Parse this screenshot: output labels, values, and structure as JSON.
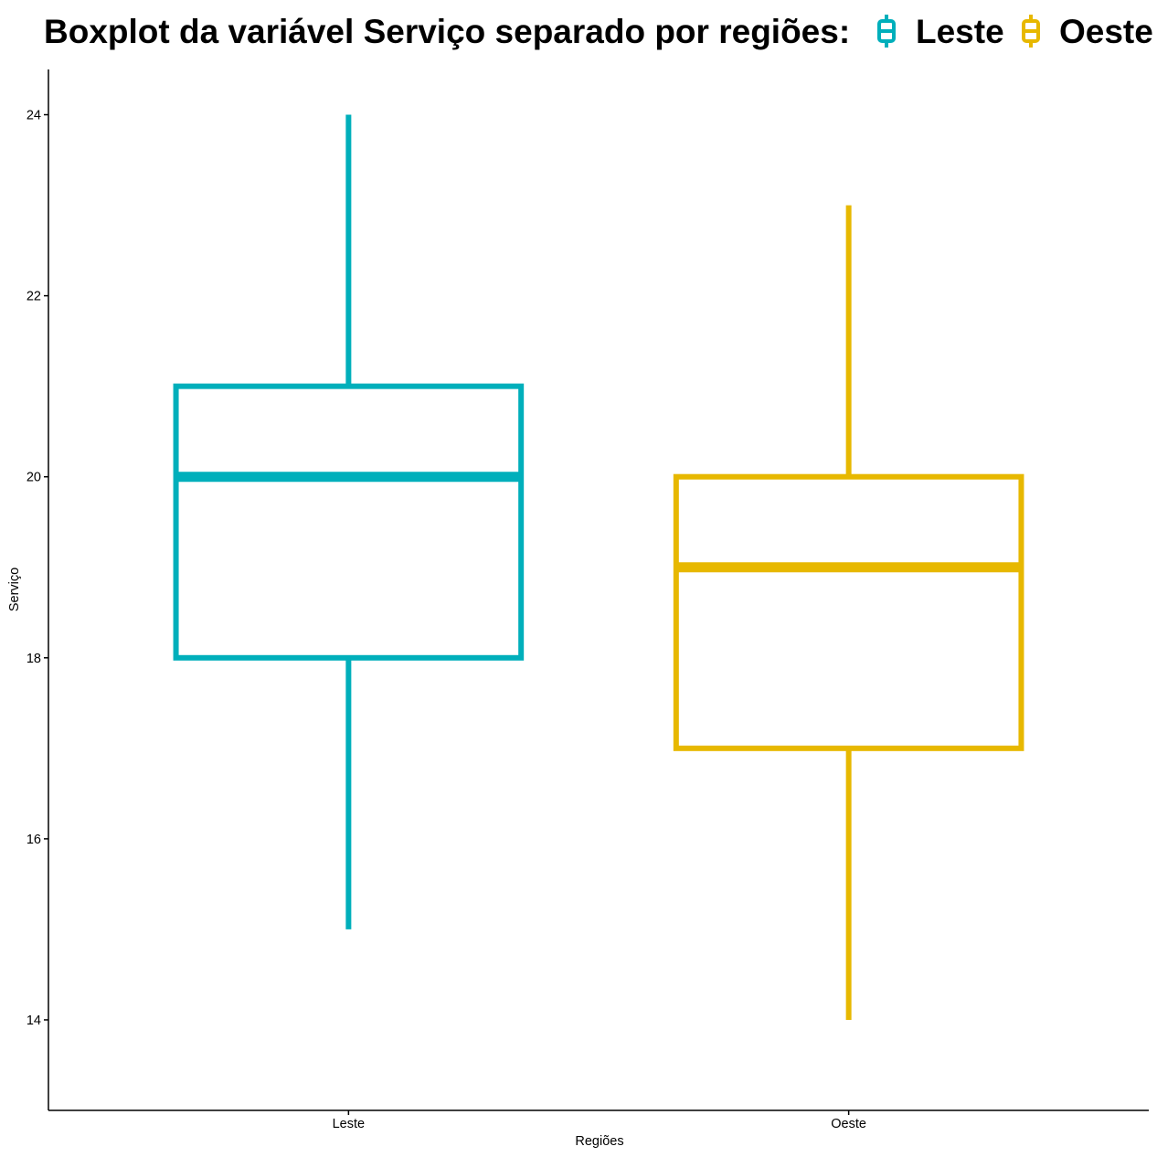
{
  "chart_data": {
    "type": "boxplot",
    "title": "Boxplot da variável Serviço separado por regiões:",
    "xlabel": "Regiões",
    "ylabel": "Serviço",
    "ylim": [
      13.0,
      24.5
    ],
    "yticks": [
      14,
      16,
      18,
      20,
      22,
      24
    ],
    "categories": [
      "Leste",
      "Oeste"
    ],
    "series": [
      {
        "name": "Leste",
        "color": "#00AFBB",
        "min": 15,
        "q1": 18,
        "median": 20,
        "q3": 21,
        "max": 24
      },
      {
        "name": "Oeste",
        "color": "#E7B800",
        "min": 14,
        "q1": 17,
        "median": 19,
        "q3": 20,
        "max": 23
      }
    ],
    "legend": {
      "position": "top",
      "entries": [
        "Leste",
        "Oeste"
      ]
    },
    "grid": false
  }
}
